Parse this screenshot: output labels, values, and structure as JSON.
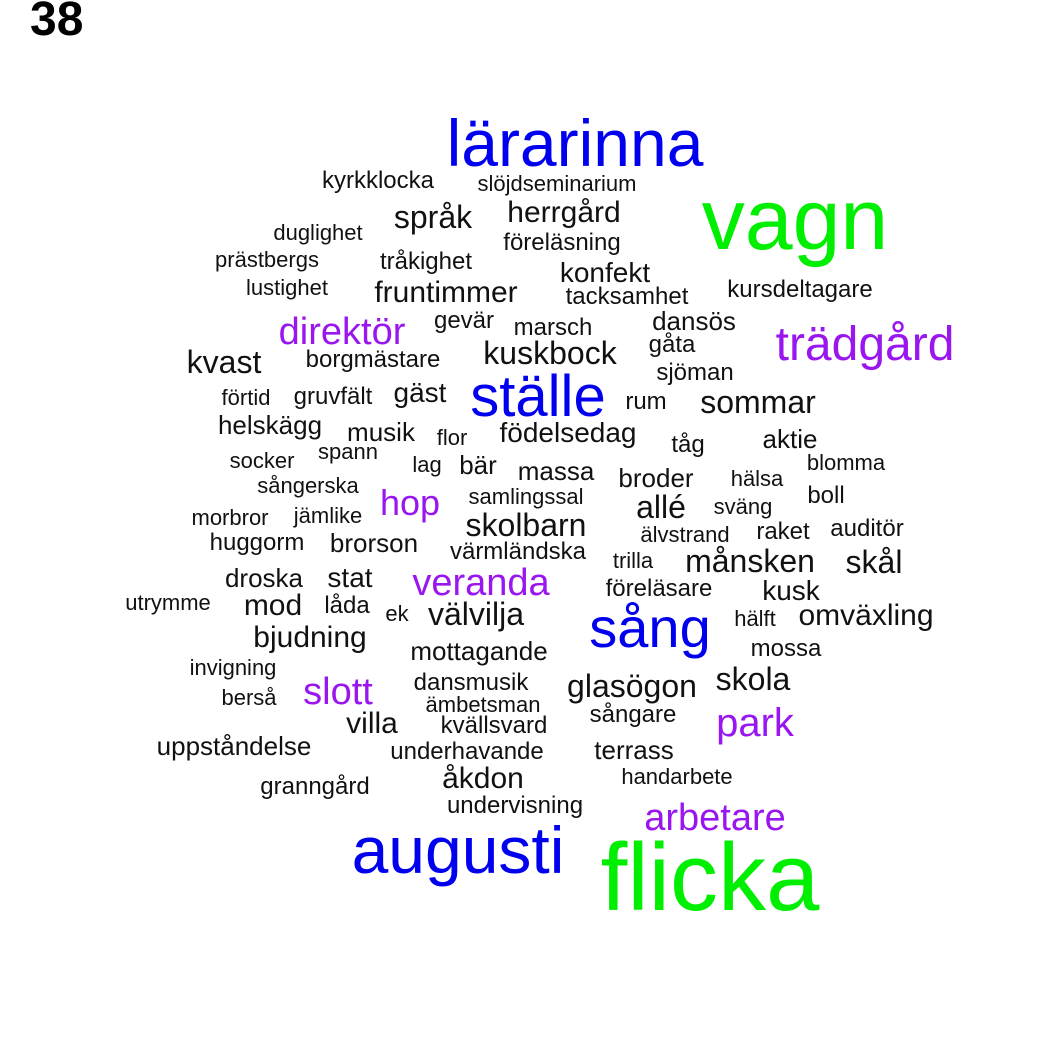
{
  "page_number": "38",
  "colors": {
    "green": "#00ee00",
    "blue": "#0000ee",
    "purple": "#9a16ee",
    "black": "#111111"
  },
  "words": [
    {
      "text": "vagn",
      "color": "green",
      "weight": 5
    },
    {
      "text": "flicka",
      "color": "green",
      "weight": 5
    },
    {
      "text": "lärarinna",
      "color": "blue",
      "weight": 4
    },
    {
      "text": "augusti",
      "color": "blue",
      "weight": 4
    },
    {
      "text": "ställe",
      "color": "blue",
      "weight": 4
    },
    {
      "text": "sång",
      "color": "blue",
      "weight": 4
    },
    {
      "text": "trädgård",
      "color": "purple",
      "weight": 3
    },
    {
      "text": "direktör",
      "color": "purple",
      "weight": 3
    },
    {
      "text": "veranda",
      "color": "purple",
      "weight": 3
    },
    {
      "text": "hop",
      "color": "purple",
      "weight": 3
    },
    {
      "text": "slott",
      "color": "purple",
      "weight": 3
    },
    {
      "text": "park",
      "color": "purple",
      "weight": 3
    },
    {
      "text": "arbetare",
      "color": "purple",
      "weight": 3
    },
    {
      "text": "kyrkklocka",
      "color": "black",
      "weight": 1
    },
    {
      "text": "slöjdseminarium",
      "color": "black",
      "weight": 1
    },
    {
      "text": "språk",
      "color": "black",
      "weight": 2
    },
    {
      "text": "herrgård",
      "color": "black",
      "weight": 2
    },
    {
      "text": "duglighet",
      "color": "black",
      "weight": 1
    },
    {
      "text": "föreläsning",
      "color": "black",
      "weight": 1
    },
    {
      "text": "prästbergs",
      "color": "black",
      "weight": 1
    },
    {
      "text": "tråkighet",
      "color": "black",
      "weight": 1
    },
    {
      "text": "konfekt",
      "color": "black",
      "weight": 2
    },
    {
      "text": "lustighet",
      "color": "black",
      "weight": 1
    },
    {
      "text": "fruntimmer",
      "color": "black",
      "weight": 2
    },
    {
      "text": "tacksamhet",
      "color": "black",
      "weight": 1
    },
    {
      "text": "kursdeltagare",
      "color": "black",
      "weight": 1
    },
    {
      "text": "gevär",
      "color": "black",
      "weight": 1
    },
    {
      "text": "marsch",
      "color": "black",
      "weight": 1
    },
    {
      "text": "dansös",
      "color": "black",
      "weight": 1
    },
    {
      "text": "gåta",
      "color": "black",
      "weight": 1
    },
    {
      "text": "kuskbock",
      "color": "black",
      "weight": 2
    },
    {
      "text": "kvast",
      "color": "black",
      "weight": 2
    },
    {
      "text": "borgmästare",
      "color": "black",
      "weight": 1
    },
    {
      "text": "sjöman",
      "color": "black",
      "weight": 1
    },
    {
      "text": "förtid",
      "color": "black",
      "weight": 1
    },
    {
      "text": "gruvfält",
      "color": "black",
      "weight": 1
    },
    {
      "text": "gäst",
      "color": "black",
      "weight": 2
    },
    {
      "text": "rum",
      "color": "black",
      "weight": 1
    },
    {
      "text": "sommar",
      "color": "black",
      "weight": 2
    },
    {
      "text": "helskägg",
      "color": "black",
      "weight": 1
    },
    {
      "text": "musik",
      "color": "black",
      "weight": 1
    },
    {
      "text": "flor",
      "color": "black",
      "weight": 1
    },
    {
      "text": "födelsedag",
      "color": "black",
      "weight": 2
    },
    {
      "text": "tåg",
      "color": "black",
      "weight": 1
    },
    {
      "text": "aktie",
      "color": "black",
      "weight": 1
    },
    {
      "text": "socker",
      "color": "black",
      "weight": 1
    },
    {
      "text": "spann",
      "color": "black",
      "weight": 1
    },
    {
      "text": "lag",
      "color": "black",
      "weight": 1
    },
    {
      "text": "bär",
      "color": "black",
      "weight": 1
    },
    {
      "text": "massa",
      "color": "black",
      "weight": 1
    },
    {
      "text": "broder",
      "color": "black",
      "weight": 1
    },
    {
      "text": "hälsa",
      "color": "black",
      "weight": 1
    },
    {
      "text": "blomma",
      "color": "black",
      "weight": 1
    },
    {
      "text": "sångerska",
      "color": "black",
      "weight": 1
    },
    {
      "text": "samlingssal",
      "color": "black",
      "weight": 1
    },
    {
      "text": "allé",
      "color": "black",
      "weight": 2
    },
    {
      "text": "sväng",
      "color": "black",
      "weight": 1
    },
    {
      "text": "boll",
      "color": "black",
      "weight": 1
    },
    {
      "text": "morbror",
      "color": "black",
      "weight": 1
    },
    {
      "text": "jämlike",
      "color": "black",
      "weight": 1
    },
    {
      "text": "skolbarn",
      "color": "black",
      "weight": 2
    },
    {
      "text": "älvstrand",
      "color": "black",
      "weight": 1
    },
    {
      "text": "raket",
      "color": "black",
      "weight": 1
    },
    {
      "text": "auditör",
      "color": "black",
      "weight": 1
    },
    {
      "text": "huggorm",
      "color": "black",
      "weight": 1
    },
    {
      "text": "brorson",
      "color": "black",
      "weight": 1
    },
    {
      "text": "värmländska",
      "color": "black",
      "weight": 1
    },
    {
      "text": "trilla",
      "color": "black",
      "weight": 1
    },
    {
      "text": "månsken",
      "color": "black",
      "weight": 2
    },
    {
      "text": "skål",
      "color": "black",
      "weight": 2
    },
    {
      "text": "droska",
      "color": "black",
      "weight": 1
    },
    {
      "text": "stat",
      "color": "black",
      "weight": 1
    },
    {
      "text": "föreläsare",
      "color": "black",
      "weight": 1
    },
    {
      "text": "kusk",
      "color": "black",
      "weight": 2
    },
    {
      "text": "utrymme",
      "color": "black",
      "weight": 1
    },
    {
      "text": "mod",
      "color": "black",
      "weight": 2
    },
    {
      "text": "låda",
      "color": "black",
      "weight": 1
    },
    {
      "text": "ek",
      "color": "black",
      "weight": 1
    },
    {
      "text": "välvilja",
      "color": "black",
      "weight": 2
    },
    {
      "text": "hälft",
      "color": "black",
      "weight": 1
    },
    {
      "text": "omväxling",
      "color": "black",
      "weight": 2
    },
    {
      "text": "bjudning",
      "color": "black",
      "weight": 2
    },
    {
      "text": "mottagande",
      "color": "black",
      "weight": 1
    },
    {
      "text": "mossa",
      "color": "black",
      "weight": 1
    },
    {
      "text": "invigning",
      "color": "black",
      "weight": 1
    },
    {
      "text": "berså",
      "color": "black",
      "weight": 1
    },
    {
      "text": "dansmusik",
      "color": "black",
      "weight": 1
    },
    {
      "text": "glasögon",
      "color": "black",
      "weight": 2
    },
    {
      "text": "skola",
      "color": "black",
      "weight": 2
    },
    {
      "text": "ämbetsman",
      "color": "black",
      "weight": 1
    },
    {
      "text": "sångare",
      "color": "black",
      "weight": 1
    },
    {
      "text": "villa",
      "color": "black",
      "weight": 2
    },
    {
      "text": "kvällsvard",
      "color": "black",
      "weight": 1
    },
    {
      "text": "uppståndelse",
      "color": "black",
      "weight": 1
    },
    {
      "text": "underhavande",
      "color": "black",
      "weight": 1
    },
    {
      "text": "terrass",
      "color": "black",
      "weight": 1
    },
    {
      "text": "åkdon",
      "color": "black",
      "weight": 2
    },
    {
      "text": "handarbete",
      "color": "black",
      "weight": 1
    },
    {
      "text": "granngård",
      "color": "black",
      "weight": 1
    },
    {
      "text": "undervisning",
      "color": "black",
      "weight": 1
    }
  ]
}
